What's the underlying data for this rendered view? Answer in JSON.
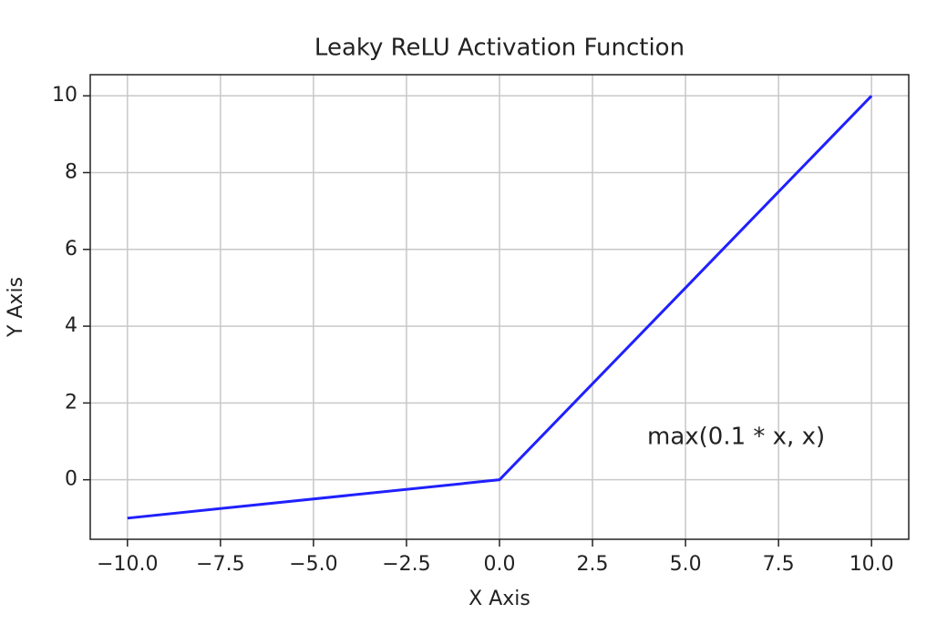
{
  "chart_data": {
    "type": "line",
    "title": "Leaky ReLU Activation Function",
    "x_label": "X Axis",
    "y_label": "Y Axis",
    "annotation": "max(0.1 * x, x)",
    "x": [
      -10,
      0,
      10
    ],
    "series": [
      {
        "name": "Leaky ReLU",
        "color": "#2020ff",
        "values": [
          -1,
          0,
          10
        ]
      }
    ],
    "xlim": [
      -11,
      11
    ],
    "ylim": [
      -1.55,
      10.55
    ],
    "xticks": [
      {
        "value": -10,
        "label": "−10.0"
      },
      {
        "value": -7.5,
        "label": "−7.5"
      },
      {
        "value": -5,
        "label": "−5.0"
      },
      {
        "value": -2.5,
        "label": "−2.5"
      },
      {
        "value": 0,
        "label": "0.0"
      },
      {
        "value": 2.5,
        "label": "2.5"
      },
      {
        "value": 5,
        "label": "5.0"
      },
      {
        "value": 7.5,
        "label": "7.5"
      },
      {
        "value": 10,
        "label": "10.0"
      }
    ],
    "yticks": [
      0,
      2,
      4,
      6,
      8,
      10
    ],
    "grid": true
  }
}
